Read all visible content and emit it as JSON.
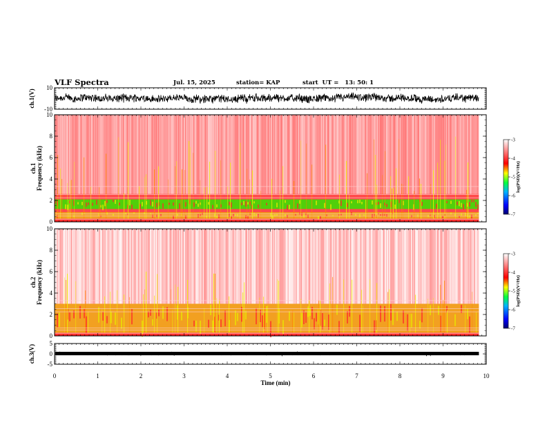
{
  "header": {
    "title": "VLF Spectra",
    "date": "Jul. 15, 2025",
    "station": "station= KAP",
    "start": "start  UT =   13: 50: 1"
  },
  "colors": {
    "waveform": "#000000",
    "background_noise": "#ff2020",
    "band_green": "#33e600",
    "band_yellow": "#e8e800",
    "colormap": [
      "#000080",
      "#0000ff",
      "#00b0ff",
      "#00ff40",
      "#ffff00",
      "#ff0000",
      "#ffffff"
    ]
  },
  "chart_data": [
    {
      "id": "ch1-waveform",
      "type": "line",
      "ylabel": "ch.1(V)",
      "ylim": [
        -10,
        10
      ],
      "yticks": [
        "10",
        "-10"
      ],
      "xlim": [
        0,
        10
      ],
      "signal": {
        "mean": 0,
        "amplitude_typical": 3.5,
        "end_min": 9.83
      }
    },
    {
      "id": "ch1-spectrogram",
      "type": "heatmap",
      "ylabel": "ch.1\nFrequency (kHz)",
      "ylim": [
        0,
        10
      ],
      "yticks": [
        "0",
        "2",
        "4",
        "6",
        "8",
        "10"
      ],
      "xlim": [
        0,
        10
      ],
      "end_min": 9.83,
      "bands": [
        {
          "fmin": 1.2,
          "fmax": 2.1,
          "level": "high",
          "color": "green"
        },
        {
          "fmin": 0.3,
          "fmax": 0.9,
          "level": "mid",
          "color": "yellow"
        }
      ],
      "colorbar": {
        "label": "log(PSD)(V²/Hz)",
        "range": [
          -7,
          -3
        ],
        "ticks": [
          "-3",
          "-4",
          "-5",
          "-6",
          "-7"
        ]
      }
    },
    {
      "id": "ch2-spectrogram",
      "type": "heatmap",
      "ylabel": "ch.2\nFrequency (kHz)",
      "ylim": [
        0,
        10
      ],
      "yticks": [
        "0",
        "2",
        "4",
        "6",
        "8",
        "10"
      ],
      "xlim": [
        0,
        10
      ],
      "end_min": 9.83,
      "bands": [
        {
          "fmin": 0.3,
          "fmax": 3.0,
          "level": "mid",
          "color": "yellow"
        }
      ],
      "colorbar": {
        "label": "log(PSD)(V²/Hz)",
        "range": [
          -7,
          -3
        ],
        "ticks": [
          "-3",
          "-4",
          "-5",
          "-6",
          "-7"
        ]
      }
    },
    {
      "id": "ch3-waveform",
      "type": "line",
      "ylabel": "ch.3(V)",
      "ylim": [
        -5,
        5
      ],
      "yticks": [
        "5",
        "0",
        "-5"
      ],
      "xlim": [
        0,
        10
      ],
      "signal": {
        "mean": 0,
        "amplitude_typical": 0.5,
        "end_min": 9.83
      }
    }
  ],
  "xaxis": {
    "label": "Time (min)",
    "ticks": [
      "0",
      "1",
      "2",
      "3",
      "4",
      "5",
      "6",
      "7",
      "8",
      "9",
      "10"
    ]
  }
}
